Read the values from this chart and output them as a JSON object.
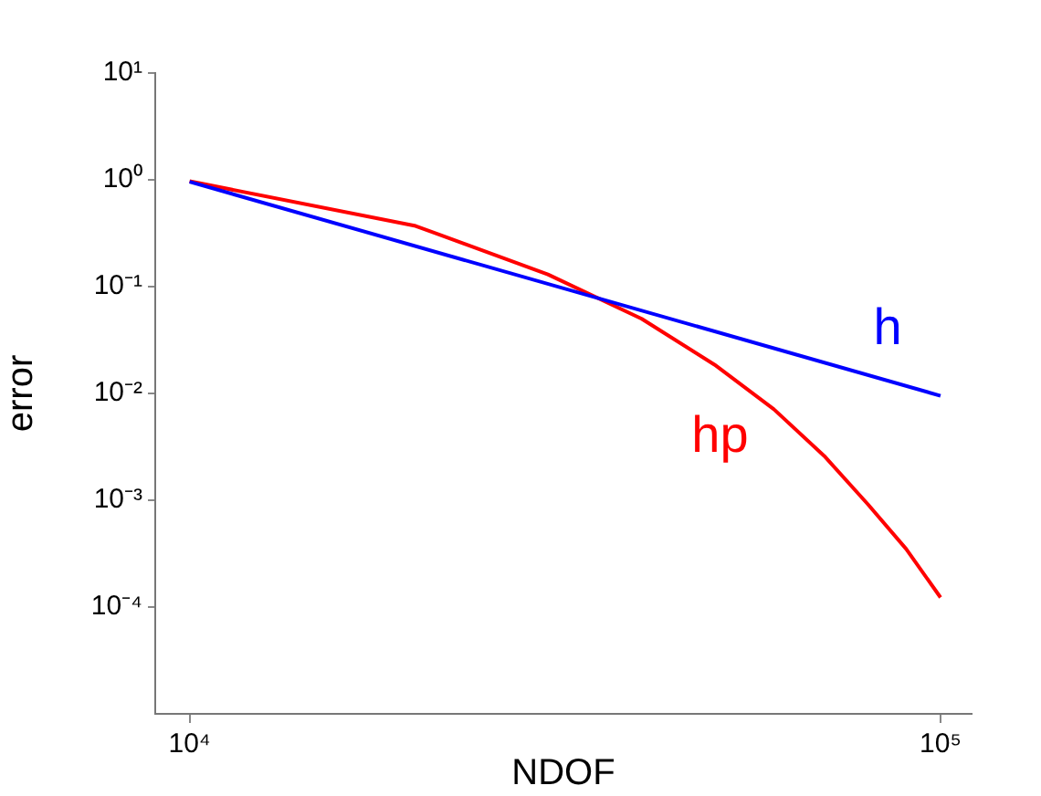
{
  "chart_data": {
    "type": "line",
    "xlabel": "NDOF",
    "ylabel": "error",
    "log": "xy",
    "grid": false,
    "legend": false,
    "marker": "none",
    "line_style": "solid",
    "xlim": [
      9000,
      110000
    ],
    "xticks": [
      {
        "value": 10000,
        "label": "10⁴"
      },
      {
        "value": 100000,
        "label": "10⁵"
      }
    ],
    "ylim": [
      1e-05,
      10
    ],
    "yticks": [
      {
        "value": 10,
        "label": "10¹"
      },
      {
        "value": 1,
        "label": "10⁰"
      },
      {
        "value": 0.1,
        "label": "10⁻¹"
      },
      {
        "value": 0.01,
        "label": "10⁻²"
      },
      {
        "value": 0.001,
        "label": "10⁻³"
      },
      {
        "value": 0.0001,
        "label": "10⁻⁴"
      }
    ],
    "series": [
      {
        "name": "h",
        "color": "#0000ff",
        "x": [
          10000,
          100000
        ],
        "values": [
          0.96,
          0.0095
        ]
      },
      {
        "name": "hp",
        "color": "#ff0000",
        "x": [
          10000,
          20000,
          30000,
          40000,
          50000,
          60000,
          70000,
          80000,
          90000,
          100000
        ],
        "values": [
          0.97,
          0.37,
          0.13,
          0.05,
          0.0186,
          0.0071,
          0.0026,
          0.00092,
          0.00035,
          0.000123
        ]
      }
    ]
  }
}
